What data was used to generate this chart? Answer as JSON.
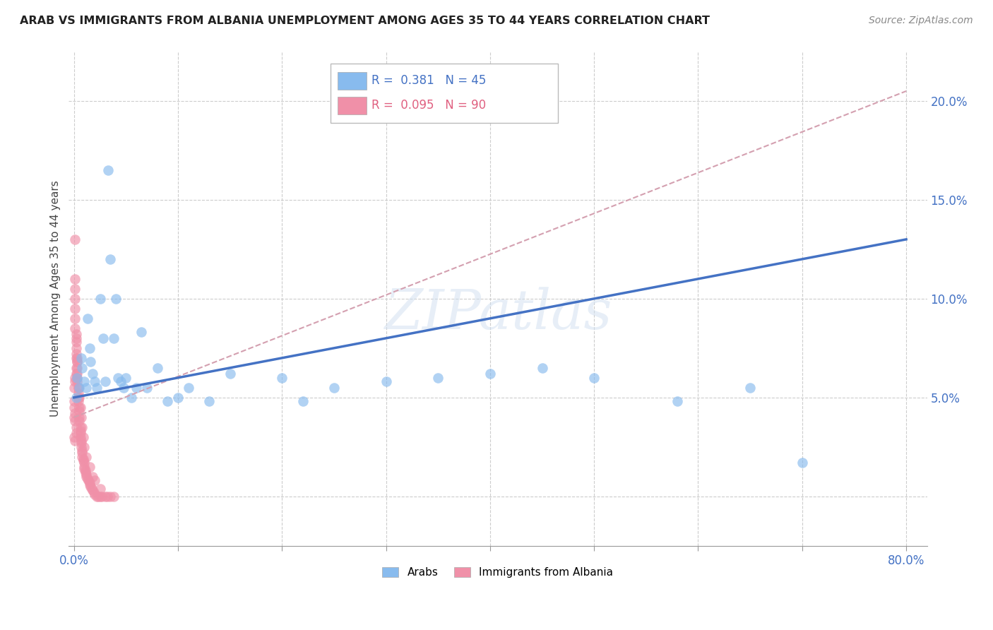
{
  "title": "ARAB VS IMMIGRANTS FROM ALBANIA UNEMPLOYMENT AMONG AGES 35 TO 44 YEARS CORRELATION CHART",
  "source": "Source: ZipAtlas.com",
  "ylabel": "Unemployment Among Ages 35 to 44 years",
  "xlim": [
    -0.005,
    0.82
  ],
  "ylim": [
    -0.025,
    0.225
  ],
  "gridline_color": "#cccccc",
  "background_color": "#ffffff",
  "arab_color": "#88bbee",
  "albania_color": "#f090a8",
  "arab_R": 0.381,
  "arab_N": 45,
  "albania_R": 0.095,
  "albania_N": 90,
  "trend_arab_color": "#4472c4",
  "trend_albania_color": "#d4a0b0",
  "watermark": "ZIPatlas",
  "arab_x": [
    0.002,
    0.003,
    0.005,
    0.007,
    0.008,
    0.01,
    0.012,
    0.013,
    0.015,
    0.016,
    0.018,
    0.02,
    0.022,
    0.025,
    0.028,
    0.03,
    0.033,
    0.035,
    0.038,
    0.04,
    0.042,
    0.045,
    0.048,
    0.05,
    0.055,
    0.06,
    0.065,
    0.07,
    0.08,
    0.09,
    0.1,
    0.11,
    0.13,
    0.15,
    0.2,
    0.22,
    0.25,
    0.3,
    0.35,
    0.4,
    0.45,
    0.5,
    0.58,
    0.65,
    0.7
  ],
  "arab_y": [
    0.05,
    0.06,
    0.055,
    0.07,
    0.065,
    0.058,
    0.055,
    0.09,
    0.075,
    0.068,
    0.062,
    0.058,
    0.055,
    0.1,
    0.08,
    0.058,
    0.165,
    0.12,
    0.08,
    0.1,
    0.06,
    0.058,
    0.055,
    0.06,
    0.05,
    0.055,
    0.083,
    0.055,
    0.065,
    0.048,
    0.05,
    0.055,
    0.048,
    0.062,
    0.06,
    0.048,
    0.055,
    0.058,
    0.06,
    0.062,
    0.065,
    0.06,
    0.048,
    0.055,
    0.017
  ],
  "albania_x": [
    0.0,
    0.0,
    0.001,
    0.001,
    0.001,
    0.001,
    0.001,
    0.001,
    0.001,
    0.002,
    0.002,
    0.002,
    0.002,
    0.002,
    0.002,
    0.003,
    0.003,
    0.003,
    0.003,
    0.003,
    0.004,
    0.004,
    0.004,
    0.004,
    0.005,
    0.005,
    0.005,
    0.005,
    0.006,
    0.006,
    0.006,
    0.006,
    0.007,
    0.007,
    0.007,
    0.008,
    0.008,
    0.008,
    0.009,
    0.009,
    0.01,
    0.01,
    0.01,
    0.011,
    0.011,
    0.012,
    0.012,
    0.013,
    0.014,
    0.015,
    0.015,
    0.016,
    0.017,
    0.018,
    0.019,
    0.02,
    0.022,
    0.023,
    0.025,
    0.027,
    0.03,
    0.032,
    0.035,
    0.038,
    0.0,
    0.001,
    0.001,
    0.002,
    0.002,
    0.003,
    0.003,
    0.004,
    0.005,
    0.006,
    0.007,
    0.008,
    0.009,
    0.01,
    0.012,
    0.015,
    0.018,
    0.02,
    0.025,
    0.0,
    0.001,
    0.001,
    0.002,
    0.002,
    0.0,
    0.001
  ],
  "albania_y": [
    0.048,
    0.045,
    0.13,
    0.11,
    0.105,
    0.1,
    0.095,
    0.09,
    0.085,
    0.082,
    0.08,
    0.078,
    0.075,
    0.072,
    0.07,
    0.068,
    0.065,
    0.062,
    0.06,
    0.058,
    0.055,
    0.052,
    0.05,
    0.048,
    0.045,
    0.043,
    0.04,
    0.038,
    0.035,
    0.033,
    0.032,
    0.03,
    0.028,
    0.027,
    0.025,
    0.023,
    0.022,
    0.02,
    0.019,
    0.018,
    0.017,
    0.015,
    0.014,
    0.013,
    0.012,
    0.011,
    0.01,
    0.009,
    0.008,
    0.007,
    0.006,
    0.005,
    0.004,
    0.003,
    0.002,
    0.001,
    0.0,
    0.0,
    0.0,
    0.0,
    0.0,
    0.0,
    0.0,
    0.0,
    0.055,
    0.058,
    0.06,
    0.062,
    0.065,
    0.068,
    0.07,
    0.055,
    0.05,
    0.045,
    0.04,
    0.035,
    0.03,
    0.025,
    0.02,
    0.015,
    0.01,
    0.008,
    0.004,
    0.04,
    0.042,
    0.038,
    0.035,
    0.032,
    0.03,
    0.028
  ]
}
